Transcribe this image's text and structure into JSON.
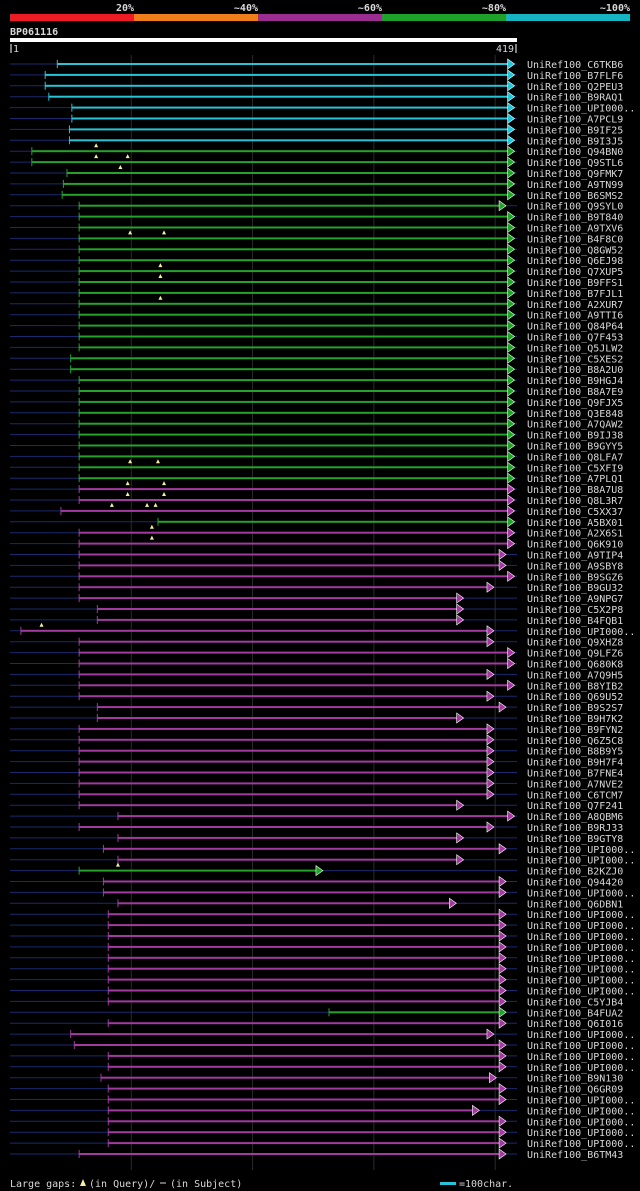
{
  "legend": {
    "bands": [
      {
        "label": "20%",
        "color": "#ed1c24"
      },
      {
        "label": "~40%",
        "color": "#f07d1c"
      },
      {
        "label": "~60%",
        "color": "#9b2d91"
      },
      {
        "label": "~80%",
        "color": "#1ea02a"
      },
      {
        "label": "~100%",
        "color": "#16b4c3"
      }
    ]
  },
  "query": {
    "name": "BP061116",
    "start": "1",
    "end": "419",
    "length": 419
  },
  "colors": {
    "cyan": "#27c3d6",
    "green": "#24a22a",
    "purple": "#a23aa0",
    "guide": "#1b2a6e",
    "gap": "#f5f0a0",
    "grid": "#2a2a2a",
    "bg": "#000000",
    "text": "#d8d8d8"
  },
  "hits": [
    {
      "name": "UniRef100_C6TKB6",
      "color": "cyan",
      "start": 40,
      "end": 417,
      "gaps": []
    },
    {
      "name": "UniRef100_B7FLF6",
      "color": "cyan",
      "start": 30,
      "end": 417,
      "gaps": []
    },
    {
      "name": "UniRef100_Q2PEU3",
      "color": "cyan",
      "start": 30,
      "end": 417,
      "gaps": []
    },
    {
      "name": "UniRef100_B9RAQ1",
      "color": "cyan",
      "start": 33,
      "end": 417,
      "gaps": []
    },
    {
      "name": "UniRef100_UPI000..",
      "color": "cyan",
      "start": 52,
      "end": 417,
      "gaps": []
    },
    {
      "name": "UniRef100_A7PCL9",
      "color": "cyan",
      "start": 52,
      "end": 417,
      "gaps": []
    },
    {
      "name": "UniRef100_B9IF25",
      "color": "cyan",
      "start": 50,
      "end": 417,
      "gaps": []
    },
    {
      "name": "UniRef100_B9I3J5",
      "color": "cyan",
      "start": 50,
      "end": 417,
      "gaps": []
    },
    {
      "name": "UniRef100_Q94BN0",
      "color": "green",
      "start": 19,
      "end": 417,
      "gaps": [
        72
      ]
    },
    {
      "name": "UniRef100_Q9STL6",
      "color": "green",
      "start": 19,
      "end": 417,
      "gaps": [
        72,
        98
      ]
    },
    {
      "name": "UniRef100_Q9FMK7",
      "color": "green",
      "start": 48,
      "end": 417,
      "gaps": [
        92
      ]
    },
    {
      "name": "UniRef100_A9TN99",
      "color": "green",
      "start": 45,
      "end": 417,
      "gaps": []
    },
    {
      "name": "UniRef100_B6SMS2",
      "color": "green",
      "start": 44,
      "end": 417,
      "gaps": []
    },
    {
      "name": "UniRef100_Q9SYL0",
      "color": "green",
      "start": 58,
      "end": 410,
      "gaps": []
    },
    {
      "name": "UniRef100_B9T840",
      "color": "green",
      "start": 58,
      "end": 417,
      "gaps": []
    },
    {
      "name": "UniRef100_A9TXV6",
      "color": "green",
      "start": 58,
      "end": 417,
      "gaps": []
    },
    {
      "name": "UniRef100_B4F8C0",
      "color": "green",
      "start": 58,
      "end": 417,
      "gaps": [
        100,
        128
      ]
    },
    {
      "name": "UniRef100_Q8GW52",
      "color": "green",
      "start": 58,
      "end": 417,
      "gaps": []
    },
    {
      "name": "UniRef100_Q6EJ98",
      "color": "green",
      "start": 58,
      "end": 417,
      "gaps": []
    },
    {
      "name": "UniRef100_Q7XUP5",
      "color": "green",
      "start": 58,
      "end": 417,
      "gaps": [
        125
      ]
    },
    {
      "name": "UniRef100_B9FFS1",
      "color": "green",
      "start": 58,
      "end": 417,
      "gaps": [
        125
      ]
    },
    {
      "name": "UniRef100_B7FJL1",
      "color": "green",
      "start": 58,
      "end": 417,
      "gaps": []
    },
    {
      "name": "UniRef100_A2XUR7",
      "color": "green",
      "start": 58,
      "end": 417,
      "gaps": [
        125
      ]
    },
    {
      "name": "UniRef100_A9TTI6",
      "color": "green",
      "start": 58,
      "end": 417,
      "gaps": []
    },
    {
      "name": "UniRef100_Q84P64",
      "color": "green",
      "start": 58,
      "end": 417,
      "gaps": []
    },
    {
      "name": "UniRef100_Q7F453",
      "color": "green",
      "start": 58,
      "end": 417,
      "gaps": []
    },
    {
      "name": "UniRef100_Q5JLW2",
      "color": "green",
      "start": 58,
      "end": 417,
      "gaps": []
    },
    {
      "name": "UniRef100_C5XES2",
      "color": "green",
      "start": 51,
      "end": 417,
      "gaps": []
    },
    {
      "name": "UniRef100_B8A2U0",
      "color": "green",
      "start": 51,
      "end": 417,
      "gaps": []
    },
    {
      "name": "UniRef100_B9HGJ4",
      "color": "green",
      "start": 58,
      "end": 417,
      "gaps": []
    },
    {
      "name": "UniRef100_B8A7E9",
      "color": "green",
      "start": 58,
      "end": 417,
      "gaps": []
    },
    {
      "name": "UniRef100_Q9FJX5",
      "color": "green",
      "start": 58,
      "end": 417,
      "gaps": []
    },
    {
      "name": "UniRef100_Q3E848",
      "color": "green",
      "start": 58,
      "end": 417,
      "gaps": []
    },
    {
      "name": "UniRef100_A7QAW2",
      "color": "green",
      "start": 58,
      "end": 417,
      "gaps": []
    },
    {
      "name": "UniRef100_B9IJ38",
      "color": "green",
      "start": 58,
      "end": 417,
      "gaps": []
    },
    {
      "name": "UniRef100_B9GYY5",
      "color": "green",
      "start": 58,
      "end": 417,
      "gaps": []
    },
    {
      "name": "UniRef100_Q8LFA7",
      "color": "green",
      "start": 58,
      "end": 417,
      "gaps": []
    },
    {
      "name": "UniRef100_C5XFI9",
      "color": "green",
      "start": 58,
      "end": 417,
      "gaps": [
        100,
        123
      ]
    },
    {
      "name": "UniRef100_A7PLQ1",
      "color": "green",
      "start": 58,
      "end": 417,
      "gaps": []
    },
    {
      "name": "UniRef100_B8A7U8",
      "color": "purple",
      "start": 58,
      "end": 417,
      "gaps": [
        98,
        128
      ]
    },
    {
      "name": "UniRef100_Q8L3R7",
      "color": "purple",
      "start": 58,
      "end": 417,
      "gaps": [
        98,
        128
      ]
    },
    {
      "name": "UniRef100_C5XX37",
      "color": "purple",
      "start": 43,
      "end": 417,
      "gaps": [
        85,
        114,
        121
      ]
    },
    {
      "name": "UniRef100_A5BX01",
      "color": "green",
      "start": 123,
      "end": 417,
      "gaps": []
    },
    {
      "name": "UniRef100_A2X6S1",
      "color": "purple",
      "start": 58,
      "end": 417,
      "gaps": [
        118
      ]
    },
    {
      "name": "UniRef100_Q6K910",
      "color": "purple",
      "start": 58,
      "end": 417,
      "gaps": [
        118
      ]
    },
    {
      "name": "UniRef100_A9TIP4",
      "color": "purple",
      "start": 58,
      "end": 410,
      "gaps": []
    },
    {
      "name": "UniRef100_A9SBY8",
      "color": "purple",
      "start": 58,
      "end": 410,
      "gaps": []
    },
    {
      "name": "UniRef100_B9SGZ6",
      "color": "purple",
      "start": 58,
      "end": 417,
      "gaps": []
    },
    {
      "name": "UniRef100_B9GU32",
      "color": "purple",
      "start": 58,
      "end": 400,
      "gaps": []
    },
    {
      "name": "UniRef100_A9NPG7",
      "color": "purple",
      "start": 58,
      "end": 375,
      "gaps": []
    },
    {
      "name": "UniRef100_C5X2P8",
      "color": "purple",
      "start": 73,
      "end": 375,
      "gaps": []
    },
    {
      "name": "UniRef100_B4FQB1",
      "color": "purple",
      "start": 73,
      "end": 375,
      "gaps": []
    },
    {
      "name": "UniRef100_UPI000..",
      "color": "purple",
      "start": 10,
      "end": 400,
      "gaps": [
        27
      ]
    },
    {
      "name": "UniRef100_Q9XHZ8",
      "color": "purple",
      "start": 58,
      "end": 400,
      "gaps": []
    },
    {
      "name": "UniRef100_Q9LFZ6",
      "color": "purple",
      "start": 58,
      "end": 417,
      "gaps": []
    },
    {
      "name": "UniRef100_Q680K8",
      "color": "purple",
      "start": 58,
      "end": 417,
      "gaps": []
    },
    {
      "name": "UniRef100_A7Q9H5",
      "color": "purple",
      "start": 58,
      "end": 400,
      "gaps": []
    },
    {
      "name": "UniRef100_B8YIB2",
      "color": "purple",
      "start": 58,
      "end": 417,
      "gaps": []
    },
    {
      "name": "UniRef100_Q69U52",
      "color": "purple",
      "start": 58,
      "end": 400,
      "gaps": []
    },
    {
      "name": "UniRef100_B9S2S7",
      "color": "purple",
      "start": 73,
      "end": 410,
      "gaps": []
    },
    {
      "name": "UniRef100_B9H7K2",
      "color": "purple",
      "start": 73,
      "end": 375,
      "gaps": []
    },
    {
      "name": "UniRef100_B9FYN2",
      "color": "purple",
      "start": 58,
      "end": 400,
      "gaps": []
    },
    {
      "name": "UniRef100_Q6Z5C8",
      "color": "purple",
      "start": 58,
      "end": 400,
      "gaps": []
    },
    {
      "name": "UniRef100_B8B9Y5",
      "color": "purple",
      "start": 58,
      "end": 400,
      "gaps": []
    },
    {
      "name": "UniRef100_B9H7F4",
      "color": "purple",
      "start": 58,
      "end": 400,
      "gaps": []
    },
    {
      "name": "UniRef100_B7FNE4",
      "color": "purple",
      "start": 58,
      "end": 400,
      "gaps": []
    },
    {
      "name": "UniRef100_A7NVE2",
      "color": "purple",
      "start": 58,
      "end": 400,
      "gaps": []
    },
    {
      "name": "UniRef100_C6TCM7",
      "color": "purple",
      "start": 58,
      "end": 400,
      "gaps": []
    },
    {
      "name": "UniRef100_Q7F241",
      "color": "purple",
      "start": 58,
      "end": 375,
      "gaps": []
    },
    {
      "name": "UniRef100_A8QBM6",
      "color": "purple",
      "start": 90,
      "end": 417,
      "gaps": []
    },
    {
      "name": "UniRef100_B9RJ33",
      "color": "purple",
      "start": 58,
      "end": 400,
      "gaps": []
    },
    {
      "name": "UniRef100_B9GTY8",
      "color": "purple",
      "start": 90,
      "end": 375,
      "gaps": []
    },
    {
      "name": "UniRef100_UPI000..",
      "color": "purple",
      "start": 78,
      "end": 410,
      "gaps": []
    },
    {
      "name": "UniRef100_UPI000..",
      "color": "purple",
      "start": 90,
      "end": 375,
      "gaps": []
    },
    {
      "name": "UniRef100_B2KZJ0",
      "color": "green",
      "start": 58,
      "end": 259,
      "gaps": [
        90
      ]
    },
    {
      "name": "UniRef100_Q94420",
      "color": "purple",
      "start": 78,
      "end": 410,
      "gaps": []
    },
    {
      "name": "UniRef100_UPI000..",
      "color": "purple",
      "start": 78,
      "end": 410,
      "gaps": []
    },
    {
      "name": "UniRef100_Q6DBN1",
      "color": "purple",
      "start": 90,
      "end": 369,
      "gaps": []
    },
    {
      "name": "UniRef100_UPI000..",
      "color": "purple",
      "start": 82,
      "end": 410,
      "gaps": []
    },
    {
      "name": "UniRef100_UPI000..",
      "color": "purple",
      "start": 82,
      "end": 410,
      "gaps": []
    },
    {
      "name": "UniRef100_UPI000..",
      "color": "purple",
      "start": 82,
      "end": 410,
      "gaps": []
    },
    {
      "name": "UniRef100_UPI000..",
      "color": "purple",
      "start": 82,
      "end": 410,
      "gaps": []
    },
    {
      "name": "UniRef100_UPI000..",
      "color": "purple",
      "start": 82,
      "end": 410,
      "gaps": []
    },
    {
      "name": "UniRef100_UPI000..",
      "color": "purple",
      "start": 82,
      "end": 410,
      "gaps": []
    },
    {
      "name": "UniRef100_UPI000..",
      "color": "purple",
      "start": 82,
      "end": 410,
      "gaps": []
    },
    {
      "name": "UniRef100_UPI000..",
      "color": "purple",
      "start": 82,
      "end": 410,
      "gaps": []
    },
    {
      "name": "UniRef100_C5YJB4",
      "color": "purple",
      "start": 82,
      "end": 410,
      "gaps": []
    },
    {
      "name": "UniRef100_B4FUA2",
      "color": "green",
      "start": 264,
      "end": 410,
      "gaps": []
    },
    {
      "name": "UniRef100_Q6I016",
      "color": "purple",
      "start": 82,
      "end": 410,
      "gaps": []
    },
    {
      "name": "UniRef100_UPI000..",
      "color": "purple",
      "start": 51,
      "end": 400,
      "gaps": []
    },
    {
      "name": "UniRef100_UPI000..",
      "color": "purple",
      "start": 54,
      "end": 410,
      "gaps": []
    },
    {
      "name": "UniRef100_UPI000..",
      "color": "purple",
      "start": 82,
      "end": 410,
      "gaps": []
    },
    {
      "name": "UniRef100_UPI000..",
      "color": "purple",
      "start": 82,
      "end": 410,
      "gaps": []
    },
    {
      "name": "UniRef100_B9N130",
      "color": "purple",
      "start": 76,
      "end": 402,
      "gaps": []
    },
    {
      "name": "UniRef100_Q6GR09",
      "color": "purple",
      "start": 82,
      "end": 410,
      "gaps": []
    },
    {
      "name": "UniRef100_UPI000..",
      "color": "purple",
      "start": 82,
      "end": 410,
      "gaps": []
    },
    {
      "name": "UniRef100_UPI000..",
      "color": "purple",
      "start": 82,
      "end": 388,
      "gaps": []
    },
    {
      "name": "UniRef100_UPI000..",
      "color": "purple",
      "start": 82,
      "end": 410,
      "gaps": []
    },
    {
      "name": "UniRef100_UPI000..",
      "color": "purple",
      "start": 82,
      "end": 410,
      "gaps": []
    },
    {
      "name": "UniRef100_UPI000..",
      "color": "purple",
      "start": 82,
      "end": 410,
      "gaps": []
    },
    {
      "name": "UniRef100_B6TM43",
      "color": "purple",
      "start": 58,
      "end": 410,
      "gaps": []
    }
  ],
  "footer": {
    "gaps_label": "Large gaps:",
    "gap_query_label": "(in Query)/",
    "gap_subject_label": "(in Subject)",
    "scale_label": "=100char."
  }
}
